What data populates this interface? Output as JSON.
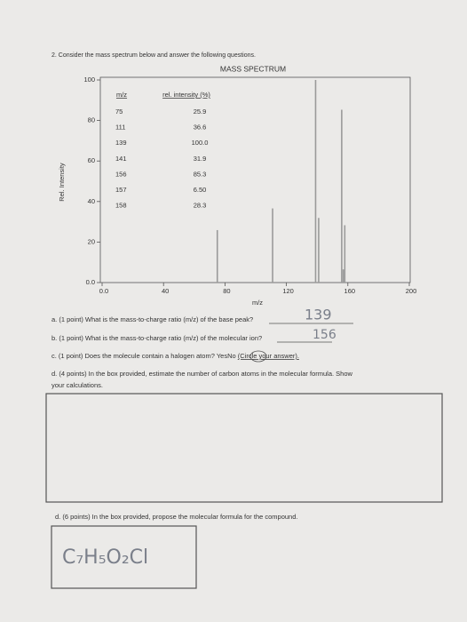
{
  "header": {
    "question": "2. Consider the mass spectrum below and answer the following questions."
  },
  "chart_data": {
    "type": "spike",
    "title": "MASS SPECTRUM",
    "xlabel": "m/z",
    "ylabel": "Rel. Intensity",
    "xlim": [
      0,
      200
    ],
    "xticks": [
      {
        "value": 0,
        "label": "0.0"
      },
      40,
      80,
      120,
      160,
      200
    ],
    "ylim": [
      0,
      100
    ],
    "yticks": [
      {
        "value": 0,
        "label": "0.0"
      },
      20,
      40,
      60,
      80,
      100
    ],
    "table_headers": [
      "m/z",
      "rel. intensity (%)"
    ],
    "series": [
      {
        "color": "#9a9a9a",
        "x": [
          75,
          111,
          139,
          141,
          156,
          157,
          158
        ],
        "values": [
          25.9,
          36.6,
          100,
          31.9,
          85.3,
          6.5,
          28.3
        ],
        "value_labels": [
          "25.9",
          "36.6",
          "100.0",
          "31.9",
          "85.3",
          "6.50",
          "28.3"
        ]
      }
    ]
  },
  "questions": {
    "a": "a. (1 point) What is the mass-to-charge ratio (m/z) of the base peak?",
    "a_answer": "139",
    "b": "b. (1 point) What is the mass-to-charge ratio (m/z) of the molecular ion?",
    "b_answer": "156",
    "c": "c. (1 point) Does the molecule contain a halogen atom?",
    "c_yes": "Yes",
    "c_no": "No",
    "c_note": "(Circle your answer).",
    "d1_line1": "d. (4 points) In the box provided, estimate the number of carbon atoms in the molecular formula. Show",
    "d1_line2": "your calculations.",
    "d2": "d. (6 points) In the box provided, propose the molecular formula for the compound.",
    "d2_answer": "C₇H₅O₂Cl"
  }
}
